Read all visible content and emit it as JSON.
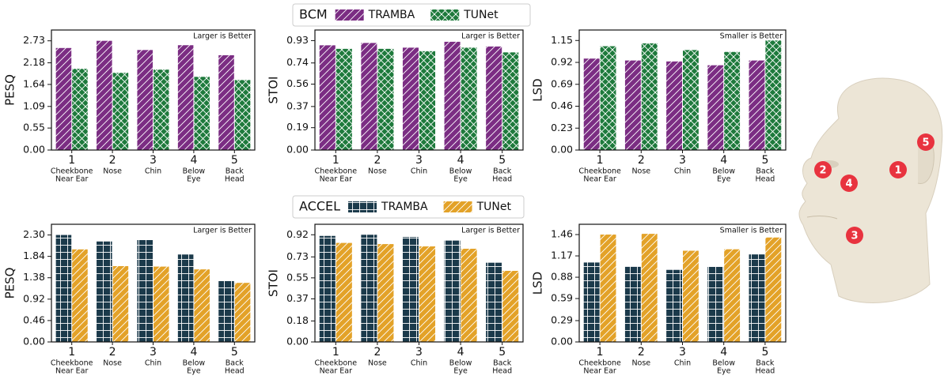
{
  "chart_data": [
    {
      "type": "bar",
      "ylabel": "PESQ",
      "annotation": "Larger is Better",
      "legend_title": "BCM",
      "categories": [
        "1",
        "2",
        "3",
        "4",
        "5"
      ],
      "category_sublabels": [
        [
          "Cheekbone",
          "Near Ear"
        ],
        [
          "Nose"
        ],
        [
          "Chin"
        ],
        [
          "Below",
          "Eye"
        ],
        [
          "Back",
          "Head"
        ]
      ],
      "series": [
        {
          "name": "TRAMBA",
          "color": "#7b2d83",
          "pattern": "diagonal",
          "values": [
            2.55,
            2.73,
            2.5,
            2.62,
            2.37
          ]
        },
        {
          "name": "TUNet",
          "color": "#1e7a3c",
          "pattern": "cross",
          "values": [
            2.03,
            1.93,
            2.01,
            1.83,
            1.75
          ]
        }
      ],
      "ylim": [
        0,
        3.0
      ],
      "yticks": [
        {
          "value": 0,
          "label": "0.00"
        },
        0.55,
        1.09,
        1.64,
        2.18,
        2.73
      ]
    },
    {
      "type": "bar",
      "ylabel": "STOI",
      "annotation": "Larger is Better",
      "categories": [
        "1",
        "2",
        "3",
        "4",
        "5"
      ],
      "category_sublabels": [
        [
          "Cheekbone",
          "Near Ear"
        ],
        [
          "Nose"
        ],
        [
          "Chin"
        ],
        [
          "Below",
          "Eye"
        ],
        [
          "Back",
          "Head"
        ]
      ],
      "series": [
        {
          "color": "#7b2d83",
          "pattern": "diagonal",
          "values": [
            0.89,
            0.91,
            0.87,
            0.92,
            0.88
          ]
        },
        {
          "color": "#1e7a3c",
          "pattern": "cross",
          "values": [
            0.86,
            0.86,
            0.84,
            0.87,
            0.83
          ]
        }
      ],
      "ylim": [
        0,
        1.02
      ],
      "yticks": [
        {
          "value": 0,
          "label": "0.00"
        },
        0.19,
        0.37,
        0.56,
        0.74,
        0.93
      ]
    },
    {
      "type": "bar",
      "ylabel": "LSD",
      "annotation": "Smaller is Better",
      "categories": [
        "1",
        "2",
        "3",
        "4",
        "5"
      ],
      "category_sublabels": [
        [
          "Cheekbone",
          "Near Ear"
        ],
        [
          "Nose"
        ],
        [
          "Chin"
        ],
        [
          "Below",
          "Eye"
        ],
        [
          "Back",
          "Head"
        ]
      ],
      "series": [
        {
          "color": "#7b2d83",
          "pattern": "diagonal",
          "values": [
            0.96,
            0.94,
            0.93,
            0.89,
            0.94
          ]
        },
        {
          "color": "#1e7a3c",
          "pattern": "cross",
          "values": [
            1.09,
            1.12,
            1.05,
            1.03,
            1.15
          ]
        }
      ],
      "ylim": [
        0,
        1.26
      ],
      "yticks": [
        {
          "value": 0,
          "label": "0.00"
        },
        0.23,
        0.46,
        0.69,
        0.92,
        1.15
      ]
    },
    {
      "type": "bar",
      "ylabel": "PESQ",
      "annotation": "Larger is Better",
      "legend_title": "ACCEL",
      "categories": [
        "1",
        "2",
        "3",
        "4",
        "5"
      ],
      "category_sublabels": [
        [
          "Cheekbone",
          "Near Ear"
        ],
        [
          "Nose"
        ],
        [
          "Chin"
        ],
        [
          "Below",
          "Eye"
        ],
        [
          "Back",
          "Head"
        ]
      ],
      "series": [
        {
          "name": "TRAMBA",
          "color": "#1b3a4b",
          "pattern": "grid",
          "values": [
            2.3,
            2.16,
            2.19,
            1.88,
            1.31
          ]
        },
        {
          "name": "TUNet",
          "color": "#e3a228",
          "pattern": "diagonal",
          "values": [
            1.99,
            1.63,
            1.62,
            1.56,
            1.27
          ]
        }
      ],
      "ylim": [
        0,
        2.53
      ],
      "yticks": [
        {
          "value": 0,
          "label": "0.00"
        },
        0.46,
        0.92,
        1.38,
        1.84,
        {
          "value": 2.3,
          "label": "2.30"
        }
      ]
    },
    {
      "type": "bar",
      "ylabel": "STOI",
      "annotation": "Larger is Better",
      "categories": [
        "1",
        "2",
        "3",
        "4",
        "5"
      ],
      "category_sublabels": [
        [
          "Cheekbone",
          "Near Ear"
        ],
        [
          "Nose"
        ],
        [
          "Chin"
        ],
        [
          "Below",
          "Eye"
        ],
        [
          "Back",
          "Head"
        ]
      ],
      "series": [
        {
          "color": "#1b3a4b",
          "pattern": "grid",
          "values": [
            0.91,
            0.92,
            0.9,
            0.87,
            0.68
          ]
        },
        {
          "color": "#e3a228",
          "pattern": "diagonal",
          "values": [
            0.85,
            0.84,
            0.82,
            0.8,
            0.61
          ]
        }
      ],
      "ylim": [
        0,
        1.01
      ],
      "yticks": [
        {
          "value": 0,
          "label": "0.00"
        },
        0.18,
        0.37,
        0.55,
        0.73,
        0.92
      ]
    },
    {
      "type": "bar",
      "ylabel": "LSD",
      "annotation": "Smaller is Better",
      "categories": [
        "1",
        "2",
        "3",
        "4",
        "5"
      ],
      "category_sublabels": [
        [
          "Cheekbone",
          "Near Ear"
        ],
        [
          "Nose"
        ],
        [
          "Chin"
        ],
        [
          "Below",
          "Eye"
        ],
        [
          "Back",
          "Head"
        ]
      ],
      "series": [
        {
          "color": "#1b3a4b",
          "pattern": "grid",
          "values": [
            1.08,
            1.03,
            0.98,
            1.02,
            1.19
          ]
        },
        {
          "color": "#e3a228",
          "pattern": "diagonal",
          "values": [
            1.46,
            1.47,
            1.24,
            1.26,
            1.42
          ]
        }
      ],
      "ylim": [
        0,
        1.6
      ],
      "yticks": [
        {
          "value": 0,
          "label": "0.00"
        },
        0.29,
        0.59,
        0.88,
        1.17,
        1.46
      ]
    }
  ],
  "face": {
    "markers": [
      "1",
      "2",
      "3",
      "4",
      "5"
    ]
  }
}
